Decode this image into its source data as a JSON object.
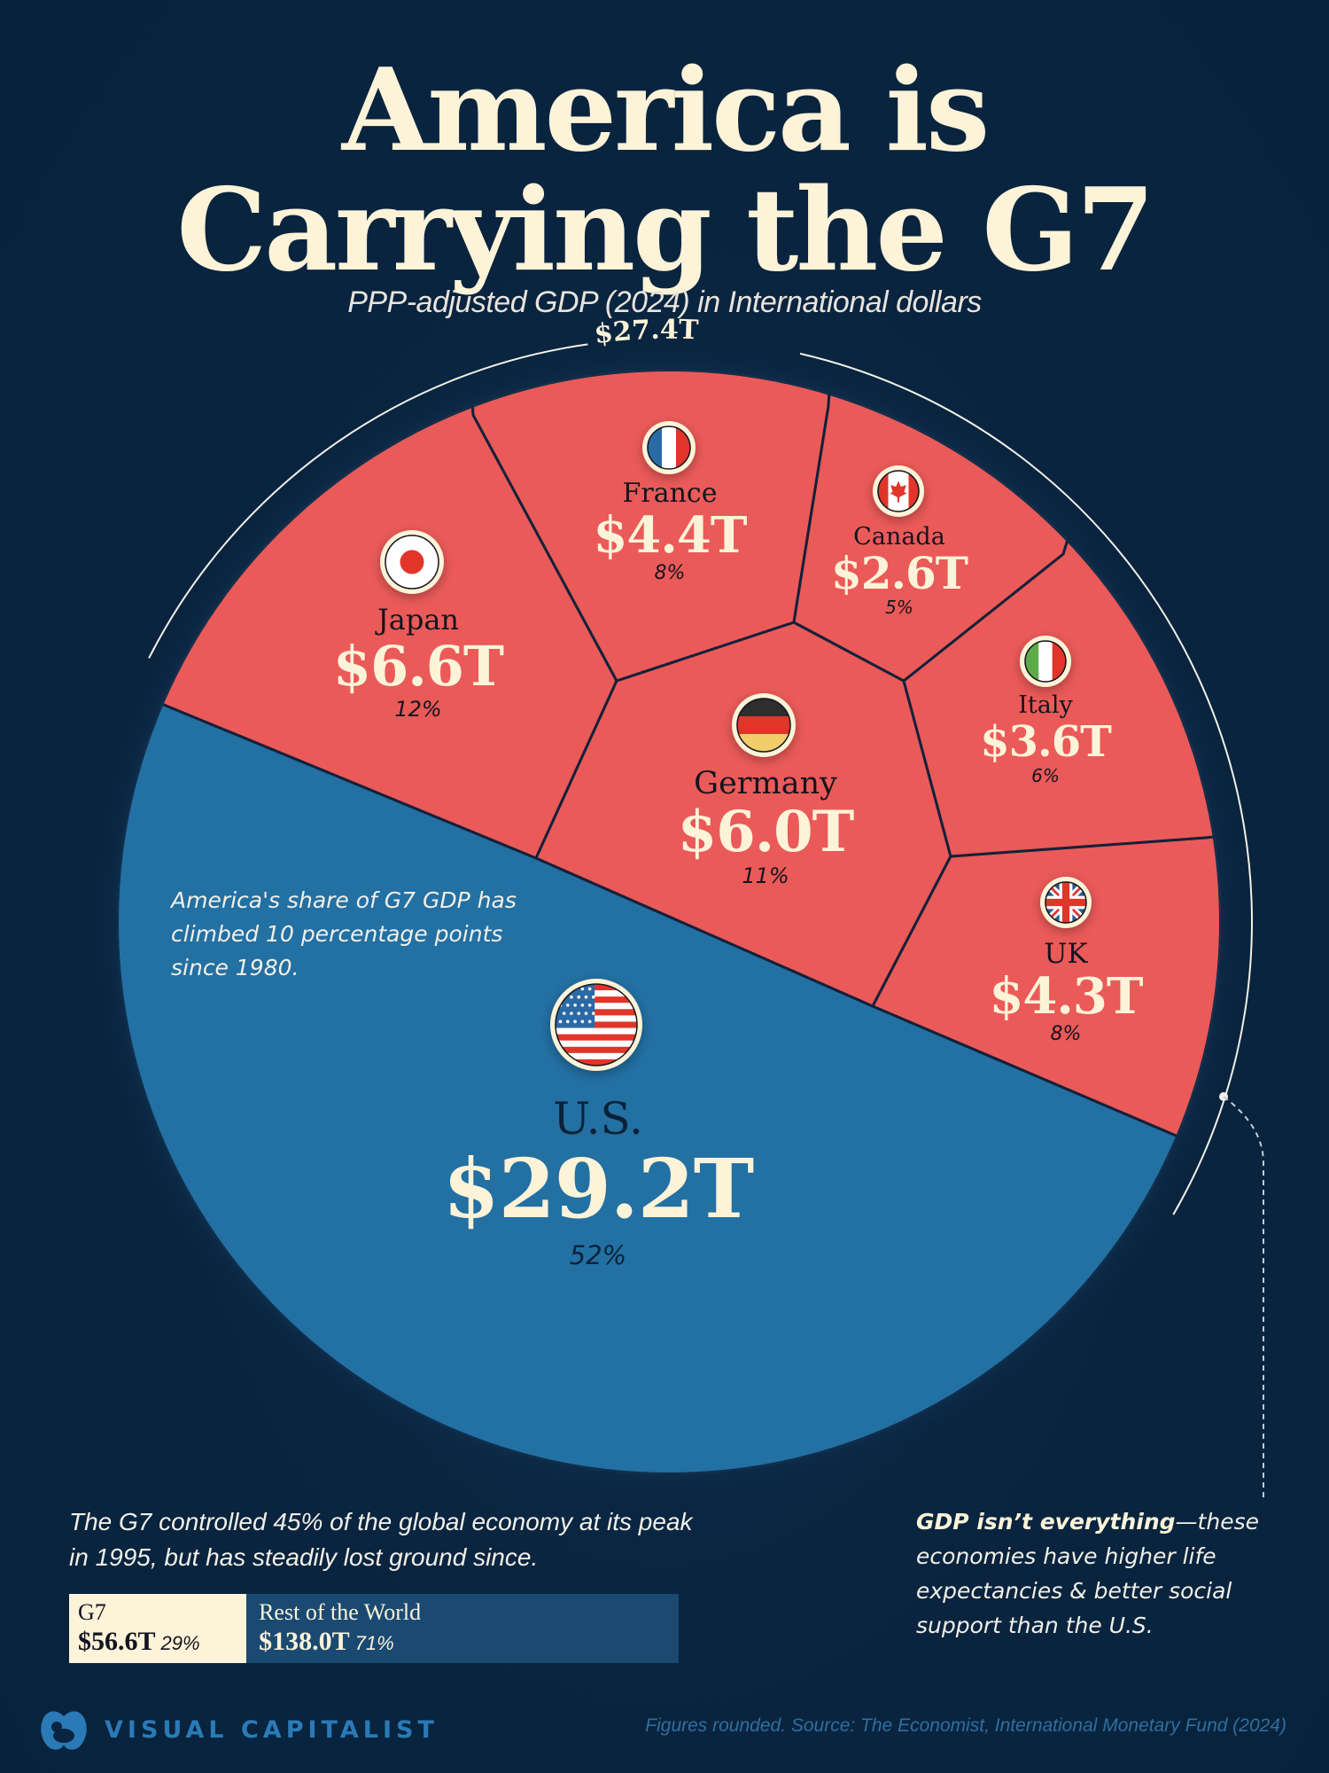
{
  "header": {
    "title_line1": "America is",
    "title_line2": "Carrying the G7",
    "subtitle": "PPP-adjusted GDP (2024) in International dollars"
  },
  "chart_data": {
    "type": "voronoi-pie",
    "title": "America is Carrying the G7",
    "subtitle": "PPP-adjusted GDP (2024) in International dollars",
    "unit": "trillion international dollars",
    "series": [
      {
        "name": "U.S.",
        "value": 29.2,
        "label": "$29.2T",
        "share_pct": 52,
        "group": "U.S.",
        "flag": "us-flag-icon"
      },
      {
        "name": "Japan",
        "value": 6.6,
        "label": "$6.6T",
        "share_pct": 12,
        "group": "Rest of G7",
        "flag": "japan-flag-icon"
      },
      {
        "name": "Germany",
        "value": 6.0,
        "label": "$6.0T",
        "share_pct": 11,
        "group": "Rest of G7",
        "flag": "germany-flag-icon"
      },
      {
        "name": "France",
        "value": 4.4,
        "label": "$4.4T",
        "share_pct": 8,
        "group": "Rest of G7",
        "flag": "france-flag-icon"
      },
      {
        "name": "UK",
        "value": 4.3,
        "label": "$4.3T",
        "share_pct": 8,
        "group": "Rest of G7",
        "flag": "uk-flag-icon"
      },
      {
        "name": "Italy",
        "value": 3.6,
        "label": "$3.6T",
        "share_pct": 6,
        "group": "Rest of G7",
        "flag": "italy-flag-icon"
      },
      {
        "name": "Canada",
        "value": 2.6,
        "label": "$2.6T",
        "share_pct": 5,
        "group": "Rest of G7",
        "flag": "canada-flag-icon"
      }
    ],
    "rest_of_g7_total": {
      "value": 27.4,
      "label": "$27.4T"
    },
    "colors": {
      "us": "#2370a3",
      "rest_of_g7": "#ea5a58",
      "border": "#13213a"
    },
    "world_comparison": {
      "type": "stacked-bar",
      "segments": [
        {
          "name": "G7",
          "value": 56.6,
          "label": "$56.6T",
          "share_pct": 29,
          "color": "#fdf3d8"
        },
        {
          "name": "Rest of the World",
          "value": 138.0,
          "label": "$138.0T",
          "share_pct": 71,
          "color": "#1a4a72"
        }
      ]
    }
  },
  "cells": {
    "us": {
      "name": "U.S.",
      "value": "$29.2T",
      "pct": "52%"
    },
    "japan": {
      "name": "Japan",
      "value": "$6.6T",
      "pct": "12%"
    },
    "germany": {
      "name": "Germany",
      "value": "$6.0T",
      "pct": "11%"
    },
    "france": {
      "name": "France",
      "value": "$4.4T",
      "pct": "8%"
    },
    "uk": {
      "name": "UK",
      "value": "$4.3T",
      "pct": "8%"
    },
    "italy": {
      "name": "Italy",
      "value": "$3.6T",
      "pct": "6%"
    },
    "canada": {
      "name": "Canada",
      "value": "$2.6T",
      "pct": "5%"
    }
  },
  "rest_total_label": "$27.4T",
  "notes": {
    "us_share": "America's share of G7 GDP has climbed 10 percentage points since 1980.",
    "g7_peak": "The G7 controlled 45% of the global economy at its peak in 1995, but has steadily lost ground since.",
    "gdp_bold": "GDP isn’t everything",
    "gdp_rest": "—these economies have higher life expectancies & better social support than the U.S."
  },
  "world_bar": {
    "g7_label": "G7",
    "g7_value": "$56.6T",
    "g7_pct": "29%",
    "row_label": "Rest of the World",
    "row_value": "$138.0T",
    "row_pct": "71%"
  },
  "footer": {
    "brand": "VISUAL CAPITALIST",
    "source": "Figures rounded. Source: The Economist, International Monetary Fund (2024)"
  }
}
